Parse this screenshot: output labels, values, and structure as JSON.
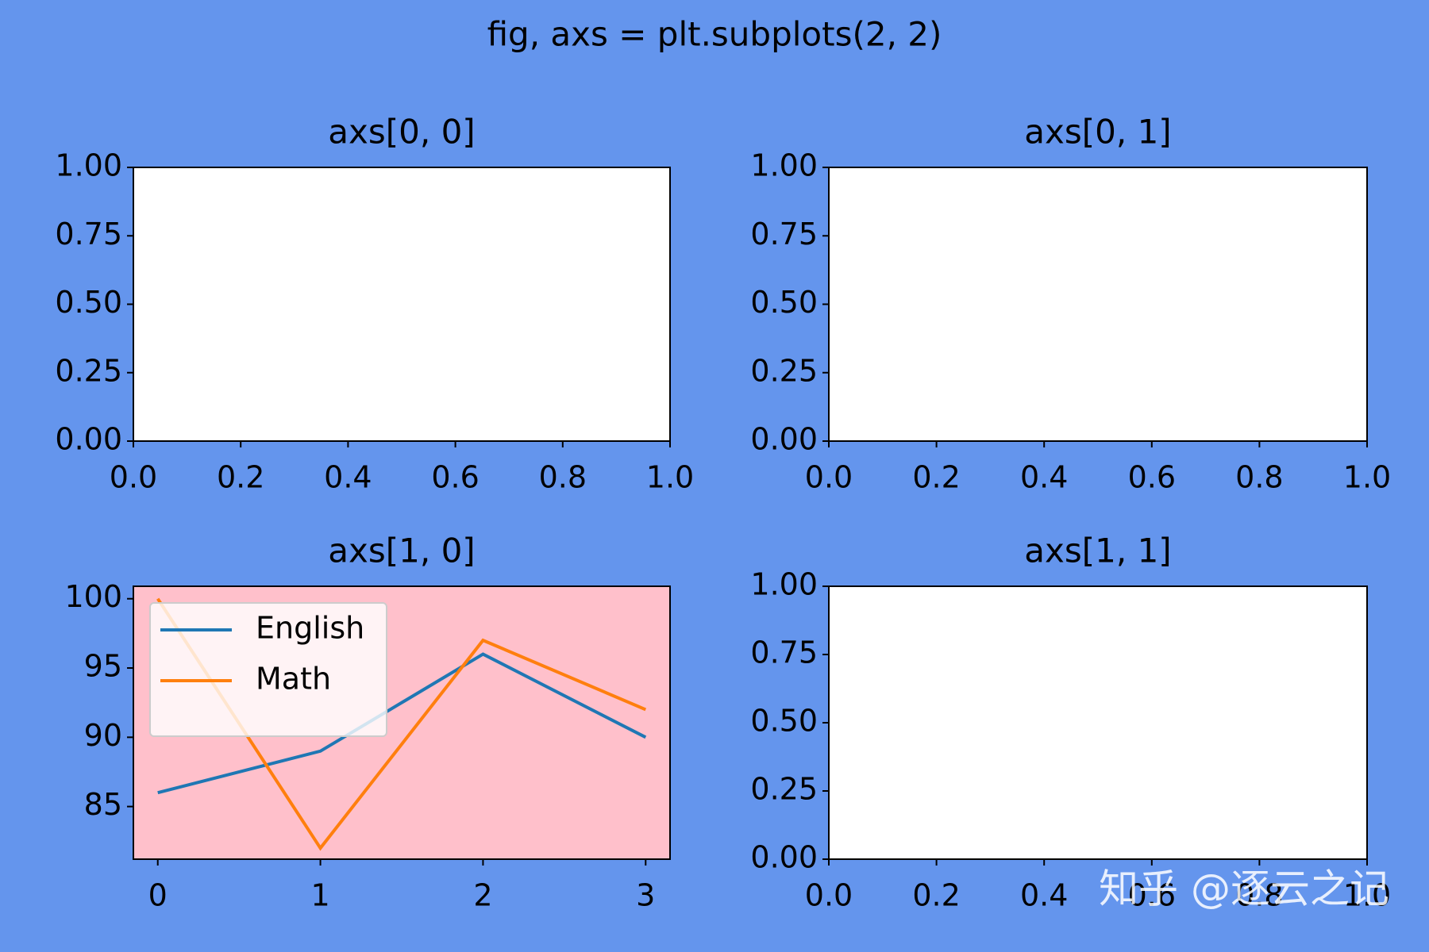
{
  "figure_title": "fig, axs = plt.subplots(2, 2)",
  "figure_facecolor": "#6495ed",
  "watermark": "知乎 @逐云之记",
  "chart_data": [
    {
      "type": "line",
      "title": "axs[0, 0]",
      "facecolor": "#ffffff",
      "xlim": [
        0,
        1
      ],
      "xticks": [
        {
          "value": 0,
          "label": "0.0"
        },
        0.2,
        0.4,
        0.6,
        0.8,
        {
          "value": 1,
          "label": "1.0"
        }
      ],
      "ylim": [
        0,
        1
      ],
      "yticks": [
        {
          "value": 0,
          "label": "0.00"
        },
        0.25,
        {
          "value": 0.5,
          "label": "0.50"
        },
        0.75,
        {
          "value": 1,
          "label": "1.00"
        }
      ],
      "series": []
    },
    {
      "type": "line",
      "title": "axs[0, 1]",
      "facecolor": "#ffffff",
      "xlim": [
        0,
        1
      ],
      "xticks": [
        {
          "value": 0,
          "label": "0.0"
        },
        0.2,
        0.4,
        0.6,
        0.8,
        {
          "value": 1,
          "label": "1.0"
        }
      ],
      "ylim": [
        0,
        1
      ],
      "yticks": [
        {
          "value": 0,
          "label": "0.00"
        },
        0.25,
        {
          "value": 0.5,
          "label": "0.50"
        },
        0.75,
        {
          "value": 1,
          "label": "1.00"
        }
      ],
      "series": []
    },
    {
      "type": "line",
      "title": "axs[1, 0]",
      "facecolor": "#ffc0cb",
      "x": [
        0,
        1,
        2,
        3
      ],
      "xlim": [
        -0.15,
        3.15
      ],
      "xticks": [
        0,
        1,
        2,
        3
      ],
      "ylim": [
        81.2,
        100.9
      ],
      "yticks": [
        85,
        90,
        95,
        100
      ],
      "legend": "upper left",
      "series": [
        {
          "name": "English",
          "color": "#1f77b4",
          "values": [
            86,
            89,
            96,
            90
          ]
        },
        {
          "name": "Math",
          "color": "#ff7f0e",
          "values": [
            100,
            82,
            97,
            92
          ]
        }
      ]
    },
    {
      "type": "line",
      "title": "axs[1, 1]",
      "facecolor": "#ffffff",
      "xlim": [
        0,
        1
      ],
      "xticks": [
        {
          "value": 0,
          "label": "0.0"
        },
        0.2,
        0.4,
        0.6,
        0.8,
        {
          "value": 1,
          "label": "1.0"
        }
      ],
      "ylim": [
        0,
        1
      ],
      "yticks": [
        {
          "value": 0,
          "label": "0.00"
        },
        0.25,
        {
          "value": 0.5,
          "label": "0.50"
        },
        0.75,
        {
          "value": 1,
          "label": "1.00"
        }
      ],
      "series": []
    }
  ]
}
